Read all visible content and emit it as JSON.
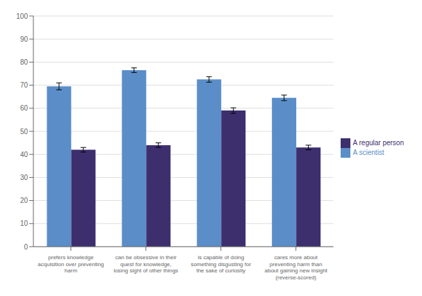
{
  "chart_data": {
    "type": "bar",
    "categories": [
      "prefers knowledge\nacquisition over preventing\nharm",
      "can be obsessive in their\nquest for knowledge,\nlosing sight of other things",
      "is capable of doing\nsomething disgusting for\nthe sake of curiosity",
      "cares more about\npreventing harm than\nabout gaining new insight\n(reverse-scored)"
    ],
    "series": [
      {
        "name": "A scientist",
        "color": "#5B8EC8",
        "values": [
          69.5,
          76.5,
          72.5,
          64.5
        ],
        "errors": [
          1.5,
          1.0,
          1.2,
          1.2
        ]
      },
      {
        "name": "A regular person",
        "color": "#3D2F6E",
        "values": [
          42.0,
          44.0,
          59.0,
          43.0
        ],
        "errors": [
          1.0,
          1.0,
          1.2,
          1.0
        ]
      }
    ],
    "ylim": [
      0,
      100
    ],
    "yticks": [
      0,
      10,
      20,
      30,
      40,
      50,
      60,
      70,
      80,
      90,
      100
    ],
    "grid": true,
    "legend": "right"
  }
}
